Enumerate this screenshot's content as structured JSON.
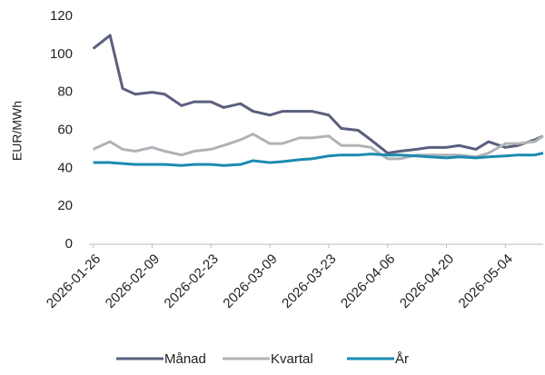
{
  "chart_data": {
    "type": "line",
    "y_label": "EUR/MWh",
    "x": [
      "2026-01-26",
      "2026-01-30",
      "2026-02-02",
      "2026-02-05",
      "2026-02-09",
      "2026-02-12",
      "2026-02-16",
      "2026-02-19",
      "2026-02-23",
      "2026-02-26",
      "2026-03-02",
      "2026-03-05",
      "2026-03-09",
      "2026-03-12",
      "2026-03-16",
      "2026-03-19",
      "2026-03-23",
      "2026-03-26",
      "2026-03-30",
      "2026-04-02",
      "2026-04-06",
      "2026-04-09",
      "2026-04-13",
      "2026-04-16",
      "2026-04-20",
      "2026-04-23",
      "2026-04-27",
      "2026-04-30",
      "2026-05-04",
      "2026-05-07",
      "2026-05-11",
      "2026-05-13"
    ],
    "series": [
      {
        "name": "Månad",
        "color": "#5b5f7e",
        "values": [
          103,
          110,
          82,
          79,
          80,
          79,
          73,
          75,
          75,
          72,
          74,
          70,
          68,
          70,
          70,
          70,
          68,
          61,
          60,
          55,
          48,
          49,
          50,
          51,
          51,
          52,
          50,
          54,
          51,
          52,
          55,
          57
        ]
      },
      {
        "name": "Kvartal",
        "color": "#b0b3b8",
        "values": [
          50,
          54,
          50,
          49,
          51,
          49,
          47,
          49,
          50,
          52,
          55,
          58,
          53,
          53,
          56,
          56,
          57,
          52,
          52,
          51,
          45,
          45,
          47,
          47,
          47,
          47,
          46,
          48,
          53,
          53,
          54,
          57
        ]
      },
      {
        "name": "År",
        "color": "#1a8bb0",
        "values": [
          43,
          43,
          42.5,
          42,
          42,
          42,
          41.5,
          42,
          42,
          41.5,
          42,
          44,
          43,
          43.5,
          44.5,
          45,
          46.5,
          47,
          47,
          47.5,
          47,
          47,
          46.5,
          46,
          45.5,
          46,
          45.5,
          46,
          46.5,
          47,
          47,
          48
        ]
      }
    ],
    "xlim": [
      "2026-01-25",
      "2026-05-13"
    ],
    "xticks": [
      "2026-01-26",
      "2026-02-09",
      "2026-02-23",
      "2026-03-09",
      "2026-03-23",
      "2026-04-06",
      "2026-04-20",
      "2026-05-04"
    ],
    "ylim": [
      0,
      120
    ],
    "yticks": [
      0,
      20,
      40,
      60,
      80,
      100,
      120
    ],
    "grid": false,
    "legend": "bottom"
  }
}
